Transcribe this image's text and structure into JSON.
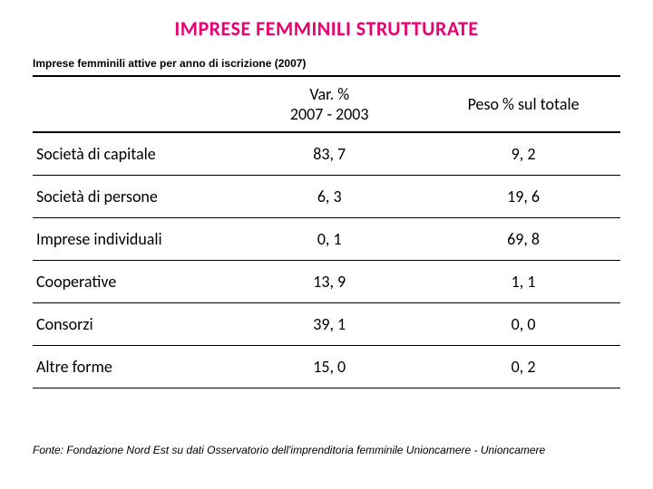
{
  "title": "IMPRESE FEMMINILI STRUTTURATE",
  "subtitle": "Imprese femminili attive per anno di iscrizione (2007)",
  "table": {
    "columns": [
      "",
      "Var. %\n2007 - 2003",
      "Peso % sul totale"
    ],
    "rows": [
      [
        "Società di capitale",
        "83, 7",
        "9, 2"
      ],
      [
        "Società di persone",
        "6, 3",
        "19, 6"
      ],
      [
        "Imprese individuali",
        "0, 1",
        "69, 8"
      ],
      [
        "Cooperative",
        "13, 9",
        "1, 1"
      ],
      [
        "Consorzi",
        "39, 1",
        "0, 0"
      ],
      [
        "Altre forme",
        "15, 0",
        "0, 2"
      ]
    ],
    "col_widths": [
      "34%",
      "33%",
      "33%"
    ],
    "title_color": "#e60073",
    "border_color": "#000000",
    "header_fontsize": 18,
    "cell_fontsize": 18
  },
  "footer": "Fonte: Fondazione Nord Est su dati Osservatorio dell'imprenditoria femminile Unioncamere - Unioncamere"
}
